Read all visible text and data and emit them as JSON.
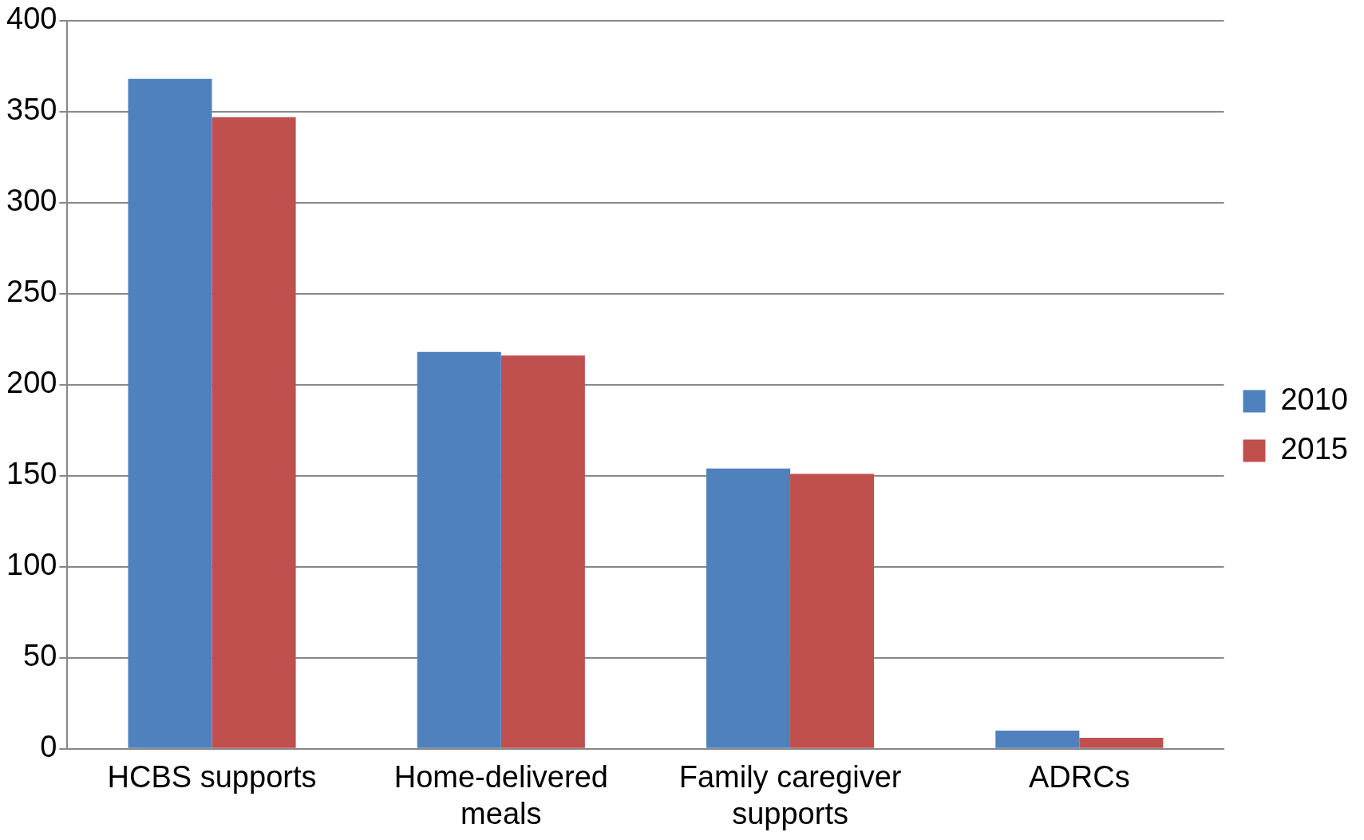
{
  "chart_data": {
    "type": "bar",
    "categories": [
      "HCBS supports",
      "Home-delivered meals",
      "Family caregiver supports",
      "ADRCs"
    ],
    "series": [
      {
        "name": "2010",
        "color": "#4f81bd",
        "values": [
          368,
          218,
          154,
          10
        ]
      },
      {
        "name": "2015",
        "color": "#c0504d",
        "values": [
          347,
          216,
          151,
          6
        ]
      }
    ],
    "ylim": [
      0,
      400
    ],
    "yticks": [
      0,
      50,
      100,
      150,
      200,
      250,
      300,
      350,
      400
    ],
    "grid": "y",
    "legend": "right"
  }
}
